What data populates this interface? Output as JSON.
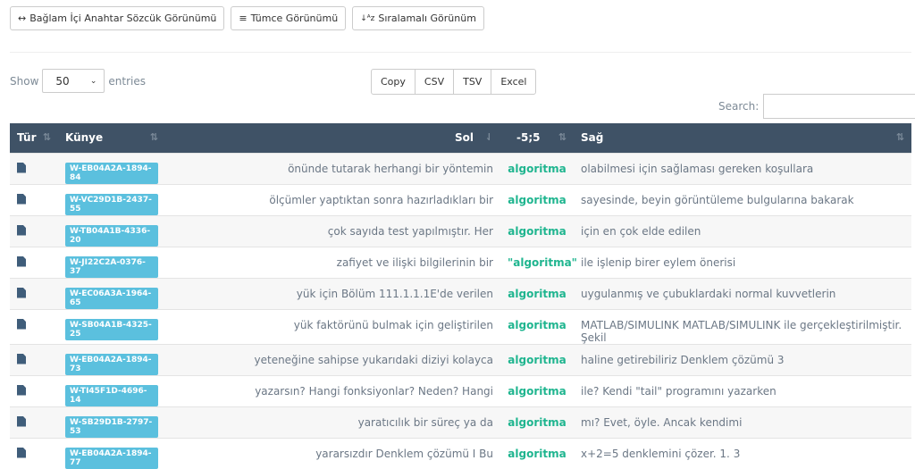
{
  "views": [
    {
      "icon": "↔",
      "label": "Bağlam İçi Anahtar Sözcük Görünümü"
    },
    {
      "icon": "≡",
      "label": "Tümce Görünümü"
    },
    {
      "icon": "↓ᴬz",
      "label": "Sıralamalı Görünüm"
    }
  ],
  "length": {
    "show": "Show",
    "value": "50",
    "entries": "entries"
  },
  "export": [
    "Copy",
    "CSV",
    "TSV",
    "Excel"
  ],
  "search": {
    "label": "Search:",
    "value": ""
  },
  "columns": [
    "Tür",
    "Künye",
    "Sol",
    "-5;5",
    "Sağ"
  ],
  "rows": [
    {
      "id": "W-EB04A2A-1894-84",
      "left": "önünde tutarak herhangi bir yöntemin",
      "kw": "algoritma",
      "right": "olabilmesi için sağlaması gereken koşullara"
    },
    {
      "id": "W-VC29D1B-2437-55",
      "left": "ölçümler yaptıktan sonra hazırladıkları bir",
      "kw": "algoritma",
      "right": "sayesinde, beyin görüntüleme bulgularına bakarak"
    },
    {
      "id": "W-TB04A1B-4336-20",
      "left": "çok sayıda test yapılmıştır. Her",
      "kw": "algoritma",
      "right": "için en çok elde edilen"
    },
    {
      "id": "W-JI22C2A-0376-37",
      "left": "zafiyet ve ilişki bilgilerinin bir",
      "kw": "\"algoritma\"",
      "right": "ile işlenip birer eylem önerisi"
    },
    {
      "id": "W-EC06A3A-1964-65",
      "left": "yük için Bölüm 111.1.1.1E'de verilen",
      "kw": "algoritma",
      "right": "uygulanmış ve çubuklardaki normal kuvvetlerin"
    },
    {
      "id": "W-SB04A1B-4325-25",
      "left": "yük faktörünü bulmak için geliştirilen",
      "kw": "algoritma",
      "right": "MATLAB/SIMULINK MATLAB/SIMULINK ile gerçekleştirilmiştir. Şekil"
    },
    {
      "id": "W-EB04A2A-1894-73",
      "left": "yeteneğine sahipse yukarıdaki diziyi kolayca",
      "kw": "algoritma",
      "right": "haline getirebiliriz Denklem çözümü 3"
    },
    {
      "id": "W-TI45F1D-4696-14",
      "left": "yazarsın? Hangi fonksiyonlar? Neden? Hangi",
      "kw": "algoritma",
      "right": "ile? Kendi \"tail\" programını yazarken"
    },
    {
      "id": "W-SB29D1B-2797-53",
      "left": "yaratıcılık bir süreç ya da",
      "kw": "algoritma",
      "right": "mı? Evet, öyle. Ancak kendimi"
    },
    {
      "id": "W-EB04A2A-1894-77",
      "left": "yararsızdır Denklem çözümü I Bu",
      "kw": "algoritma",
      "right": "x+2=5 denklemini çözer. 1. 3"
    }
  ]
}
